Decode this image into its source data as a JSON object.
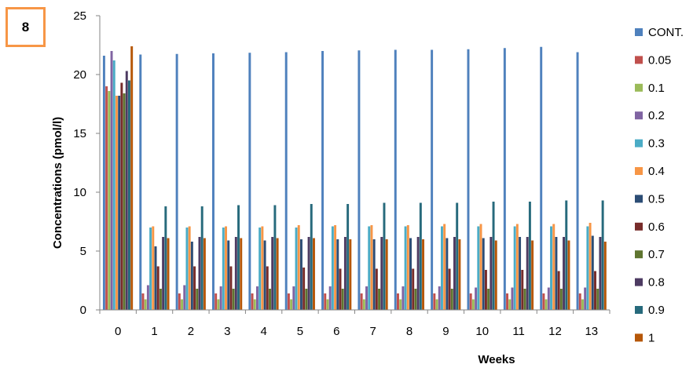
{
  "panel_label": "8",
  "chart_data": {
    "type": "bar",
    "xlabel": "Weeks",
    "ylabel": "Concentrations (pmol/l)",
    "ylim": [
      0,
      25
    ],
    "yticks": [
      0,
      5,
      10,
      15,
      20,
      25
    ],
    "grid": false,
    "legend_position": "right",
    "categories": [
      "0",
      "1",
      "2",
      "3",
      "4",
      "5",
      "6",
      "7",
      "8",
      "9",
      "10",
      "11",
      "12",
      "13"
    ],
    "series": [
      {
        "name": "CONT.",
        "color": "#4F81BD",
        "values": [
          21.6,
          21.7,
          21.75,
          21.8,
          21.85,
          21.9,
          22.0,
          22.05,
          22.1,
          22.1,
          22.15,
          22.25,
          22.35,
          21.9
        ]
      },
      {
        "name": "0.05",
        "color": "#C0504D",
        "values": [
          19.0,
          1.4,
          1.4,
          1.4,
          1.4,
          1.4,
          1.4,
          1.4,
          1.4,
          1.4,
          1.4,
          1.4,
          1.4,
          1.4
        ]
      },
      {
        "name": "0.1",
        "color": "#9BBB59",
        "values": [
          18.6,
          0.9,
          0.9,
          0.9,
          0.9,
          0.9,
          0.9,
          0.9,
          0.9,
          0.9,
          0.9,
          0.9,
          0.9,
          0.9
        ]
      },
      {
        "name": "0.2",
        "color": "#8064A2",
        "values": [
          22.0,
          2.1,
          2.1,
          2.0,
          2.0,
          2.0,
          2.0,
          2.0,
          2.0,
          2.0,
          1.9,
          1.9,
          1.9,
          1.9
        ]
      },
      {
        "name": "0.3",
        "color": "#4BACC6",
        "values": [
          21.2,
          7.0,
          7.0,
          7.0,
          7.0,
          7.0,
          7.1,
          7.1,
          7.1,
          7.1,
          7.1,
          7.1,
          7.1,
          7.1
        ]
      },
      {
        "name": "0.4",
        "color": "#F79646",
        "values": [
          18.2,
          7.1,
          7.1,
          7.1,
          7.1,
          7.2,
          7.2,
          7.2,
          7.2,
          7.3,
          7.3,
          7.3,
          7.3,
          7.4
        ]
      },
      {
        "name": "0.5",
        "color": "#2C4D75",
        "values": [
          18.2,
          5.4,
          5.8,
          5.9,
          5.9,
          6.0,
          6.0,
          6.0,
          6.1,
          6.1,
          6.1,
          6.2,
          6.2,
          6.3
        ]
      },
      {
        "name": "0.6",
        "color": "#772C2A",
        "values": [
          19.3,
          3.7,
          3.7,
          3.7,
          3.7,
          3.6,
          3.5,
          3.5,
          3.5,
          3.5,
          3.4,
          3.4,
          3.3,
          3.3
        ]
      },
      {
        "name": "0.7",
        "color": "#5F7530",
        "values": [
          18.4,
          1.8,
          1.8,
          1.8,
          1.8,
          1.8,
          1.8,
          1.8,
          1.8,
          1.8,
          1.8,
          1.8,
          1.8,
          1.8
        ]
      },
      {
        "name": "0.8",
        "color": "#4D3B62",
        "values": [
          20.3,
          6.2,
          6.2,
          6.2,
          6.2,
          6.2,
          6.2,
          6.2,
          6.2,
          6.2,
          6.2,
          6.2,
          6.2,
          6.2
        ]
      },
      {
        "name": "0.9",
        "color": "#276A7C",
        "values": [
          19.5,
          8.8,
          8.8,
          8.9,
          8.9,
          9.0,
          9.0,
          9.1,
          9.1,
          9.1,
          9.2,
          9.2,
          9.3,
          9.3
        ]
      },
      {
        "name": "1",
        "color": "#B65708",
        "values": [
          22.4,
          6.1,
          6.1,
          6.1,
          6.1,
          6.1,
          6.0,
          6.0,
          6.0,
          6.0,
          5.9,
          5.9,
          5.9,
          5.8
        ]
      }
    ]
  }
}
